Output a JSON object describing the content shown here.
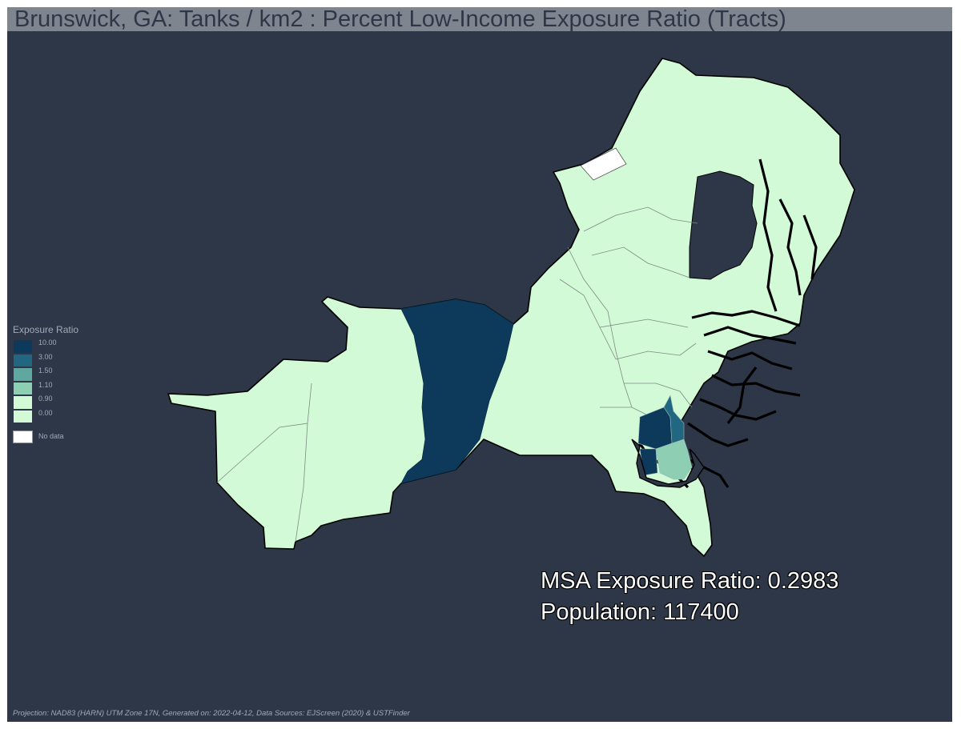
{
  "title": "Brunswick, GA: Tanks / km2 : Percent Low-Income Exposure Ratio (Tracts)",
  "legend": {
    "title": "Exposure Ratio",
    "classes": [
      {
        "label": "10.00",
        "color": "#0d3a5a"
      },
      {
        "label": "3.00",
        "color": "#216781"
      },
      {
        "label": "1.50",
        "color": "#5ea8a0"
      },
      {
        "label": "1.10",
        "color": "#8ecfb4"
      },
      {
        "label": "0.90",
        "color": "#d2fad6"
      },
      {
        "label": "0.00",
        "color": "#d2fad6"
      }
    ],
    "no_data_label": "No data",
    "no_data_color": "#ffffff"
  },
  "stats": {
    "exposure_ratio": "MSA Exposure Ratio: 0.2983",
    "population": "Population: 117400"
  },
  "footer": "Projection: NAD83 (HARN) UTM Zone 17N, Generated on: 2022-04-12, Data Sources: EJScreen (2020) & USTFinder",
  "colors": {
    "background": "#2d3747",
    "title_bar": "#7f858e",
    "base_fill": "#d2fad6",
    "dark_tract": "#0d3a5a",
    "mid_tract": "#216781",
    "light_tract": "#8ecfb4"
  }
}
